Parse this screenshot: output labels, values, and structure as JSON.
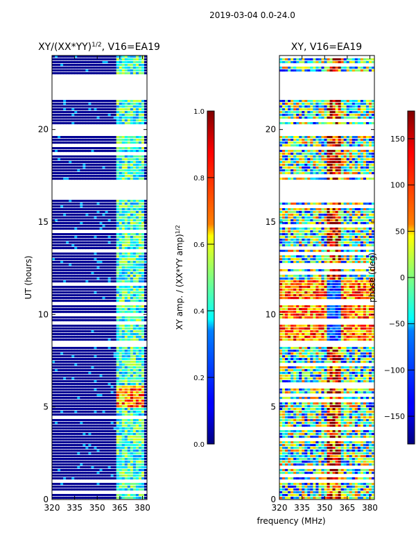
{
  "suptitle": "2019-03-04 0.0-24.0",
  "chart_data": [
    {
      "type": "heatmap",
      "title": "XY/(XX*YY)^{1/2}, V16=EA19",
      "xlabel": "",
      "ylabel": "UT (hours)",
      "xlim": [
        320,
        383
      ],
      "ylim": [
        0,
        24
      ],
      "xticks": [
        "320",
        "335",
        "350",
        "365",
        "380"
      ],
      "xtick_values": [
        320,
        335,
        350,
        365,
        380
      ],
      "yticks": [
        "0",
        "5",
        "10",
        "15",
        "20"
      ],
      "ytick_values": [
        0,
        5,
        10,
        15,
        20
      ],
      "colormap": "jet",
      "no_data_ranges_hours": [
        [
          21.6,
          23.0
        ],
        [
          16.2,
          17.2
        ],
        [
          19.6,
          20.3
        ],
        [
          8.2,
          8.6
        ]
      ],
      "colorbar": {
        "label": "XY amp. / (XX*YY amp)^{1/2}",
        "range": [
          0.0,
          1.0
        ],
        "ticks": [
          "0.0",
          "0.2",
          "0.4",
          "0.6",
          "0.8",
          "1.0"
        ],
        "tick_values": [
          0.0,
          0.2,
          0.4,
          0.6,
          0.8,
          1.0
        ]
      }
    },
    {
      "type": "heatmap",
      "title": "XY, V16=EA19",
      "xlabel": "frequency (MHz)",
      "ylabel": "",
      "xlim": [
        320,
        383
      ],
      "ylim": [
        0,
        24
      ],
      "xticks": [
        "320",
        "335",
        "350",
        "365",
        "380"
      ],
      "xtick_values": [
        320,
        335,
        350,
        365,
        380
      ],
      "yticks": [
        "0",
        "5",
        "10",
        "15",
        "20"
      ],
      "ytick_values": [
        0,
        5,
        10,
        15,
        20
      ],
      "colormap": "jet",
      "no_data_ranges_hours": [
        [
          21.6,
          23.0
        ],
        [
          16.2,
          17.2
        ],
        [
          19.6,
          20.3
        ],
        [
          8.2,
          8.6
        ]
      ],
      "colorbar": {
        "label": "phase (deg)",
        "range": [
          -180,
          180
        ],
        "ticks": [
          "−150",
          "−100",
          "−50",
          "0",
          "50",
          "100",
          "150"
        ],
        "tick_values": [
          -150,
          -100,
          -50,
          0,
          50,
          100,
          150
        ]
      }
    }
  ]
}
